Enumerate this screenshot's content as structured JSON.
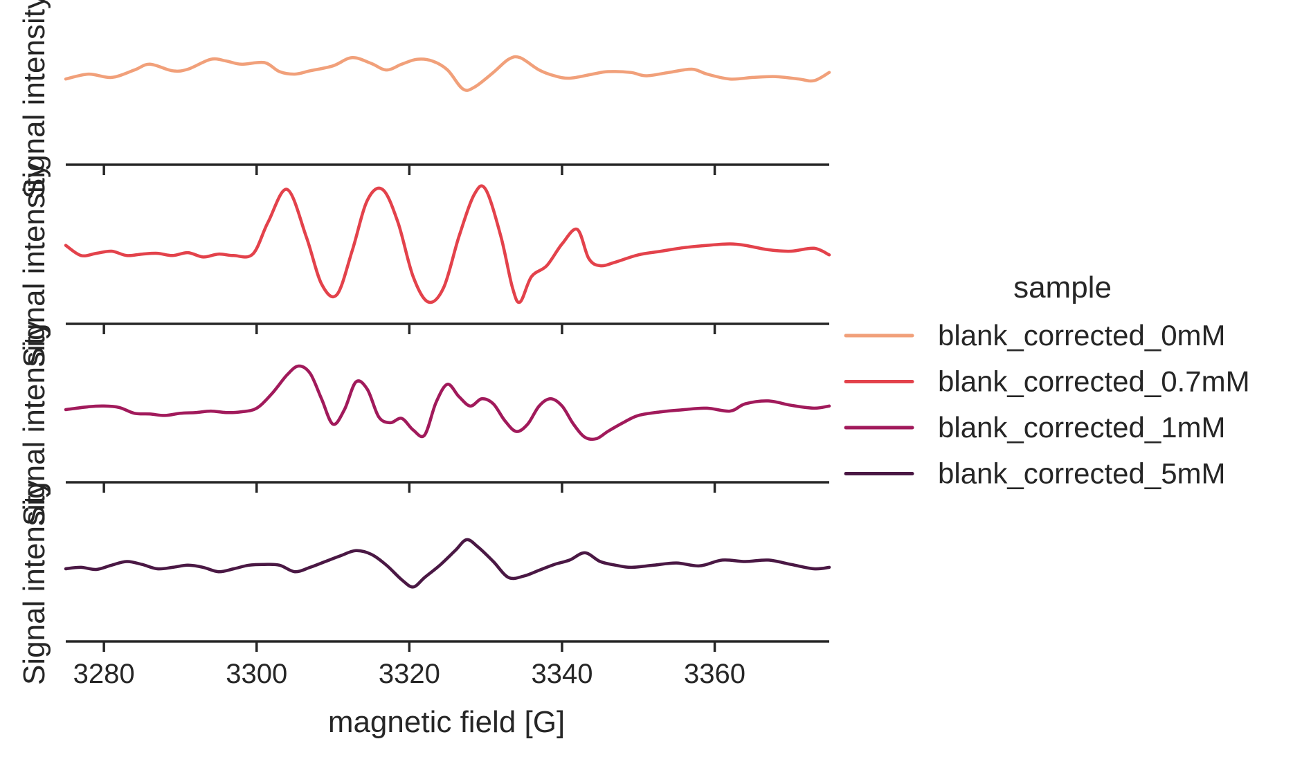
{
  "chart_data": {
    "type": "line",
    "layout": "stacked-facets",
    "xlabel": "magnetic field [G]",
    "ylabel": "Signal intensity",
    "xlim": [
      3275,
      3375
    ],
    "xticks": [
      3280,
      3300,
      3320,
      3340,
      3360
    ],
    "ylim": [
      -1,
      1
    ],
    "grid": false,
    "legend": {
      "title": "sample",
      "placement": "right"
    },
    "series": [
      {
        "name": "blank_corrected_0mM",
        "color": "#f1a07a",
        "x": [
          3275,
          3278,
          3281,
          3284,
          3286,
          3289,
          3291,
          3294,
          3296,
          3298,
          3301,
          3303,
          3305,
          3307,
          3310,
          3312.5,
          3315,
          3317,
          3319,
          3321,
          3323,
          3325,
          3327,
          3328.5,
          3331,
          3333,
          3334.5,
          3337,
          3339,
          3341,
          3344,
          3346,
          3349,
          3351,
          3354,
          3357,
          3359,
          3362,
          3365,
          3368,
          3371,
          3373,
          3375
        ],
        "y": [
          0.04,
          0.1,
          0.06,
          0.15,
          0.22,
          0.14,
          0.16,
          0.28,
          0.26,
          0.22,
          0.24,
          0.13,
          0.1,
          0.14,
          0.2,
          0.3,
          0.23,
          0.15,
          0.22,
          0.28,
          0.26,
          0.15,
          -0.08,
          -0.06,
          0.12,
          0.28,
          0.3,
          0.15,
          0.08,
          0.05,
          0.1,
          0.13,
          0.12,
          0.08,
          0.12,
          0.16,
          0.1,
          0.04,
          0.06,
          0.07,
          0.04,
          0.02,
          0.12
        ]
      },
      {
        "name": "blank_corrected_0.7mM",
        "color": "#e3424b",
        "x": [
          3275,
          3277,
          3279,
          3281,
          3283,
          3285,
          3287,
          3289,
          3291,
          3293,
          3295,
          3297,
          3299.5,
          3301.5,
          3304,
          3306.5,
          3308.5,
          3310.5,
          3312.5,
          3314.5,
          3316.5,
          3318.5,
          3320.5,
          3322.5,
          3324.5,
          3326.5,
          3328.5,
          3330,
          3332,
          3333.5,
          3334.5,
          3336,
          3338,
          3340,
          3342,
          3343.5,
          3345,
          3347,
          3350,
          3353,
          3356,
          3359,
          3362,
          3364,
          3367,
          3370,
          3373,
          3375
        ],
        "y": [
          0.08,
          -0.06,
          -0.03,
          0.0,
          -0.06,
          -0.04,
          -0.03,
          -0.06,
          -0.02,
          -0.08,
          -0.04,
          -0.06,
          -0.04,
          0.4,
          0.85,
          0.2,
          -0.45,
          -0.6,
          0.0,
          0.7,
          0.85,
          0.4,
          -0.35,
          -0.7,
          -0.5,
          0.2,
          0.78,
          0.85,
          0.2,
          -0.5,
          -0.7,
          -0.35,
          -0.2,
          0.1,
          0.3,
          -0.1,
          -0.2,
          -0.15,
          -0.05,
          0.0,
          0.05,
          0.08,
          0.1,
          0.08,
          0.02,
          0.0,
          0.04,
          -0.05
        ]
      },
      {
        "name": "blank_corrected_1mM",
        "color": "#a11a5b",
        "x": [
          3275,
          3278,
          3280,
          3282,
          3284,
          3286,
          3288,
          3290,
          3292,
          3294,
          3296,
          3298,
          3300,
          3302,
          3304,
          3305.5,
          3307,
          3308.5,
          3310,
          3311.5,
          3313,
          3314.5,
          3316,
          3317.5,
          3319,
          3320.5,
          3322,
          3323.5,
          3325,
          3326.5,
          3328,
          3329.5,
          3331,
          3332.5,
          3334,
          3335.5,
          3337,
          3338.5,
          3340,
          3341.5,
          3343,
          3344.5,
          3346,
          3348,
          3350,
          3353,
          3356,
          3359,
          3362,
          3364,
          3367,
          3370,
          3373,
          3375
        ],
        "y": [
          0.0,
          0.04,
          0.05,
          0.03,
          -0.05,
          -0.06,
          -0.08,
          -0.05,
          -0.04,
          -0.02,
          -0.04,
          -0.03,
          0.02,
          0.22,
          0.48,
          0.6,
          0.5,
          0.15,
          -0.2,
          0.0,
          0.38,
          0.28,
          -0.1,
          -0.18,
          -0.12,
          -0.28,
          -0.35,
          0.1,
          0.35,
          0.18,
          0.05,
          0.15,
          0.08,
          -0.15,
          -0.3,
          -0.2,
          0.05,
          0.15,
          0.05,
          -0.2,
          -0.38,
          -0.4,
          -0.3,
          -0.18,
          -0.08,
          -0.03,
          0.0,
          0.02,
          -0.02,
          0.08,
          0.12,
          0.06,
          0.02,
          0.05
        ]
      },
      {
        "name": "blank_corrected_5mM",
        "color": "#4a1844",
        "x": [
          3275,
          3277,
          3279,
          3281,
          3283,
          3285,
          3287,
          3289,
          3291,
          3293,
          3295,
          3297,
          3299,
          3301,
          3303,
          3305,
          3307,
          3309,
          3311,
          3313,
          3315,
          3317,
          3319,
          3320.5,
          3322,
          3324,
          3326,
          3327.5,
          3329,
          3331,
          3333,
          3335,
          3337,
          3339,
          3341,
          3343,
          3345,
          3347,
          3349,
          3352,
          3355,
          3358,
          3361,
          3364,
          3367,
          3370,
          3373,
          3375
        ],
        "y": [
          0.0,
          0.02,
          -0.01,
          0.05,
          0.1,
          0.06,
          0.0,
          0.02,
          0.05,
          0.02,
          -0.04,
          0.0,
          0.05,
          0.06,
          0.05,
          -0.04,
          0.02,
          0.1,
          0.18,
          0.25,
          0.2,
          0.05,
          -0.15,
          -0.25,
          -0.12,
          0.05,
          0.25,
          0.4,
          0.3,
          0.1,
          -0.12,
          -0.1,
          -0.02,
          0.06,
          0.12,
          0.22,
          0.1,
          0.05,
          0.02,
          0.05,
          0.08,
          0.04,
          0.12,
          0.1,
          0.12,
          0.06,
          0.0,
          0.02
        ]
      }
    ]
  }
}
